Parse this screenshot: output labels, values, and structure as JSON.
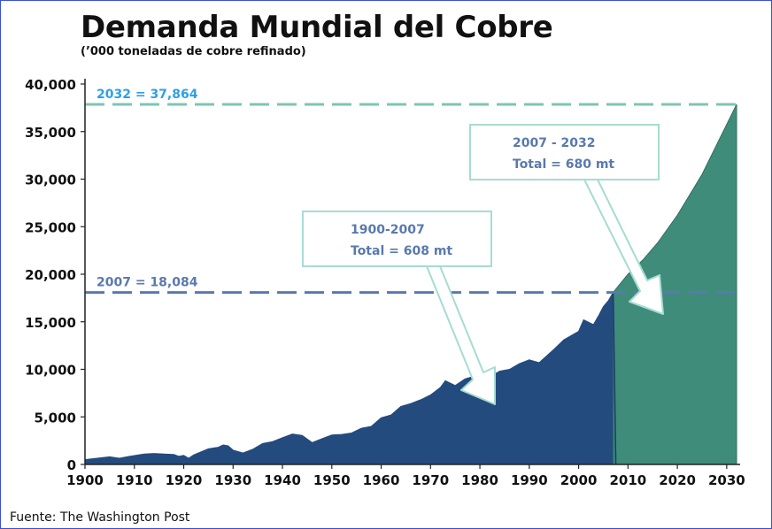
{
  "chart_data": {
    "type": "area",
    "title": "Demanda Mundial del Cobre",
    "subtitle": "(’000 toneladas de cobre refinado)",
    "source": "Fuente: The Washington Post",
    "xlim": [
      1900,
      2032
    ],
    "ylim": [
      0,
      40000
    ],
    "x_ticks": [
      "1900",
      "1910",
      "1920",
      "1930",
      "1940",
      "1950",
      "1960",
      "1970",
      "1980",
      "1990",
      "2000",
      "2010",
      "2020",
      "2030"
    ],
    "y_ticks": [
      "0",
      "5,000",
      "10,000",
      "15,000",
      "20,000",
      "25,000",
      "30,000",
      "35,000",
      "40,000"
    ],
    "colors": {
      "historical": "#244b7e",
      "projection": "#3f8c7b",
      "ref_2007": "#5a79ad",
      "ref_2032": "#7dc5b3",
      "label_2032": "#2f9ee8"
    },
    "series": [
      {
        "x": [
          1900,
          1905,
          1907,
          1909,
          1912,
          1914,
          1916,
          1918,
          1919,
          1920,
          1921,
          1922,
          1925,
          1927,
          1928,
          1929,
          1930,
          1932,
          1934,
          1936,
          1938,
          1940,
          1942,
          1944,
          1946,
          1948,
          1950,
          1952,
          1954,
          1956,
          1958,
          1960,
          1962,
          1964,
          1966,
          1968,
          1970,
          1972,
          1973,
          1975,
          1977,
          1979,
          1980,
          1982,
          1984,
          1986,
          1988,
          1990,
          1992,
          1995,
          1997,
          2000,
          2001,
          2003,
          2004,
          2005,
          2006,
          2007
        ],
        "values": [
          500,
          800,
          650,
          850,
          1100,
          1150,
          1100,
          1050,
          850,
          950,
          650,
          1000,
          1650,
          1800,
          2050,
          1950,
          1500,
          1200,
          1600,
          2200,
          2400,
          2800,
          3200,
          3050,
          2300,
          2700,
          3100,
          3150,
          3300,
          3800,
          4000,
          4900,
          5200,
          6100,
          6400,
          6800,
          7300,
          8100,
          8800,
          8300,
          9000,
          9300,
          8400,
          9200,
          9800,
          10000,
          10600,
          11000,
          10700,
          12100,
          13100,
          14000,
          15200,
          14700,
          15600,
          16600,
          17200,
          18084
        ]
      },
      {
        "x": [
          2007,
          2010,
          2013,
          2016,
          2020,
          2025,
          2032
        ],
        "values": [
          18084,
          20000,
          21500,
          23300,
          26200,
          30500,
          37864
        ]
      }
    ],
    "reference_lines": [
      {
        "label": "2007 = 18,084",
        "value": 18084
      },
      {
        "label": "2032 = 37,864",
        "value": 37864
      }
    ],
    "annotations": [
      {
        "line1": "1900-2007",
        "line2": "Total = 608 mt"
      },
      {
        "line1": "2007 - 2032",
        "line2": "Total = 680 mt"
      }
    ]
  }
}
